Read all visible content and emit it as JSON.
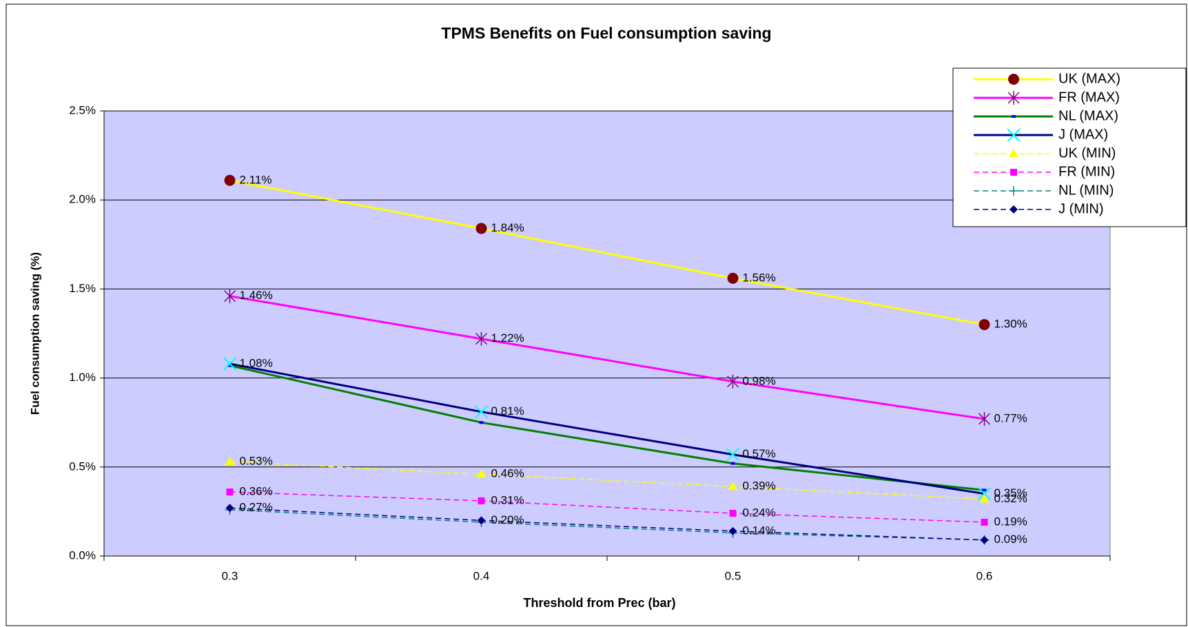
{
  "chart_data": {
    "type": "line",
    "title": "TPMS Benefits on Fuel consumption saving",
    "x_label": "Threshold from Prec (bar)",
    "y_label": "Fuel consumption saving (%)",
    "categories": [
      "0.3",
      "0.4",
      "0.5",
      "0.6"
    ],
    "ylim": [
      0,
      2.5
    ],
    "yticks": [
      {
        "value": 0,
        "label": "0.0%"
      },
      {
        "value": 0.5,
        "label": "0.5%"
      },
      {
        "value": 1,
        "label": "1.0%"
      },
      {
        "value": 1.5,
        "label": "1.5%"
      },
      {
        "value": 2,
        "label": "2.0%"
      },
      {
        "value": 2.5,
        "label": "2.5%"
      }
    ],
    "grid": true,
    "legend": "upper right",
    "plot_color": "#ccccff",
    "series": [
      {
        "name": "UK (MAX)",
        "color": "#ffff00",
        "marker": "circle",
        "marker_color": "#800000",
        "dash": "solid",
        "values": [
          2.11,
          1.84,
          1.56,
          1.3
        ],
        "value_labels": [
          "2.11%",
          "1.84%",
          "1.56%",
          "1.30%"
        ]
      },
      {
        "name": "FR (MAX)",
        "color": "#ff00ff",
        "marker": "star",
        "marker_color": "#800080",
        "dash": "solid",
        "values": [
          1.46,
          1.22,
          0.98,
          0.77
        ],
        "value_labels": [
          "1.46%",
          "1.22%",
          "0.98%",
          "0.77%"
        ]
      },
      {
        "name": "NL (MAX)",
        "color": "#008000",
        "marker": "dash",
        "marker_color": "#0000ff",
        "dash": "solid",
        "values": [
          1.07,
          0.75,
          0.52,
          0.37
        ]
      },
      {
        "name": "J (MAX)",
        "color": "#000080",
        "marker": "x",
        "marker_color": "#00ffff",
        "dash": "solid",
        "values": [
          1.08,
          0.81,
          0.57,
          0.35
        ],
        "value_labels": [
          "1.08%",
          "0.81%",
          "0.57%",
          "0.35%"
        ]
      },
      {
        "name": "UK (MIN)",
        "color": "#ffff00",
        "marker": "triangle",
        "marker_color": "#ffff00",
        "dash": "dashed",
        "values": [
          0.53,
          0.46,
          0.39,
          0.32
        ],
        "value_labels": [
          "0.53%",
          "0.46%",
          "0.39%",
          "0.32%"
        ]
      },
      {
        "name": "FR (MIN)",
        "color": "#ff00ff",
        "marker": "square",
        "marker_color": "#ff00ff",
        "dash": "dashed",
        "values": [
          0.36,
          0.31,
          0.24,
          0.19
        ],
        "value_labels": [
          "0.36%",
          "0.31%",
          "0.24%",
          "0.19%"
        ]
      },
      {
        "name": "NL (MIN)",
        "color": "#008080",
        "marker": "plus",
        "marker_color": "#008080",
        "dash": "dashed",
        "values": [
          0.26,
          0.19,
          0.13,
          0.09
        ]
      },
      {
        "name": "J (MIN)",
        "color": "#000080",
        "marker": "diamond",
        "marker_color": "#000080",
        "dash": "dashed",
        "values": [
          0.27,
          0.2,
          0.14,
          0.09
        ],
        "value_labels": [
          "0.27%",
          "0.20%",
          "0.14%",
          "0.09%"
        ]
      }
    ]
  }
}
